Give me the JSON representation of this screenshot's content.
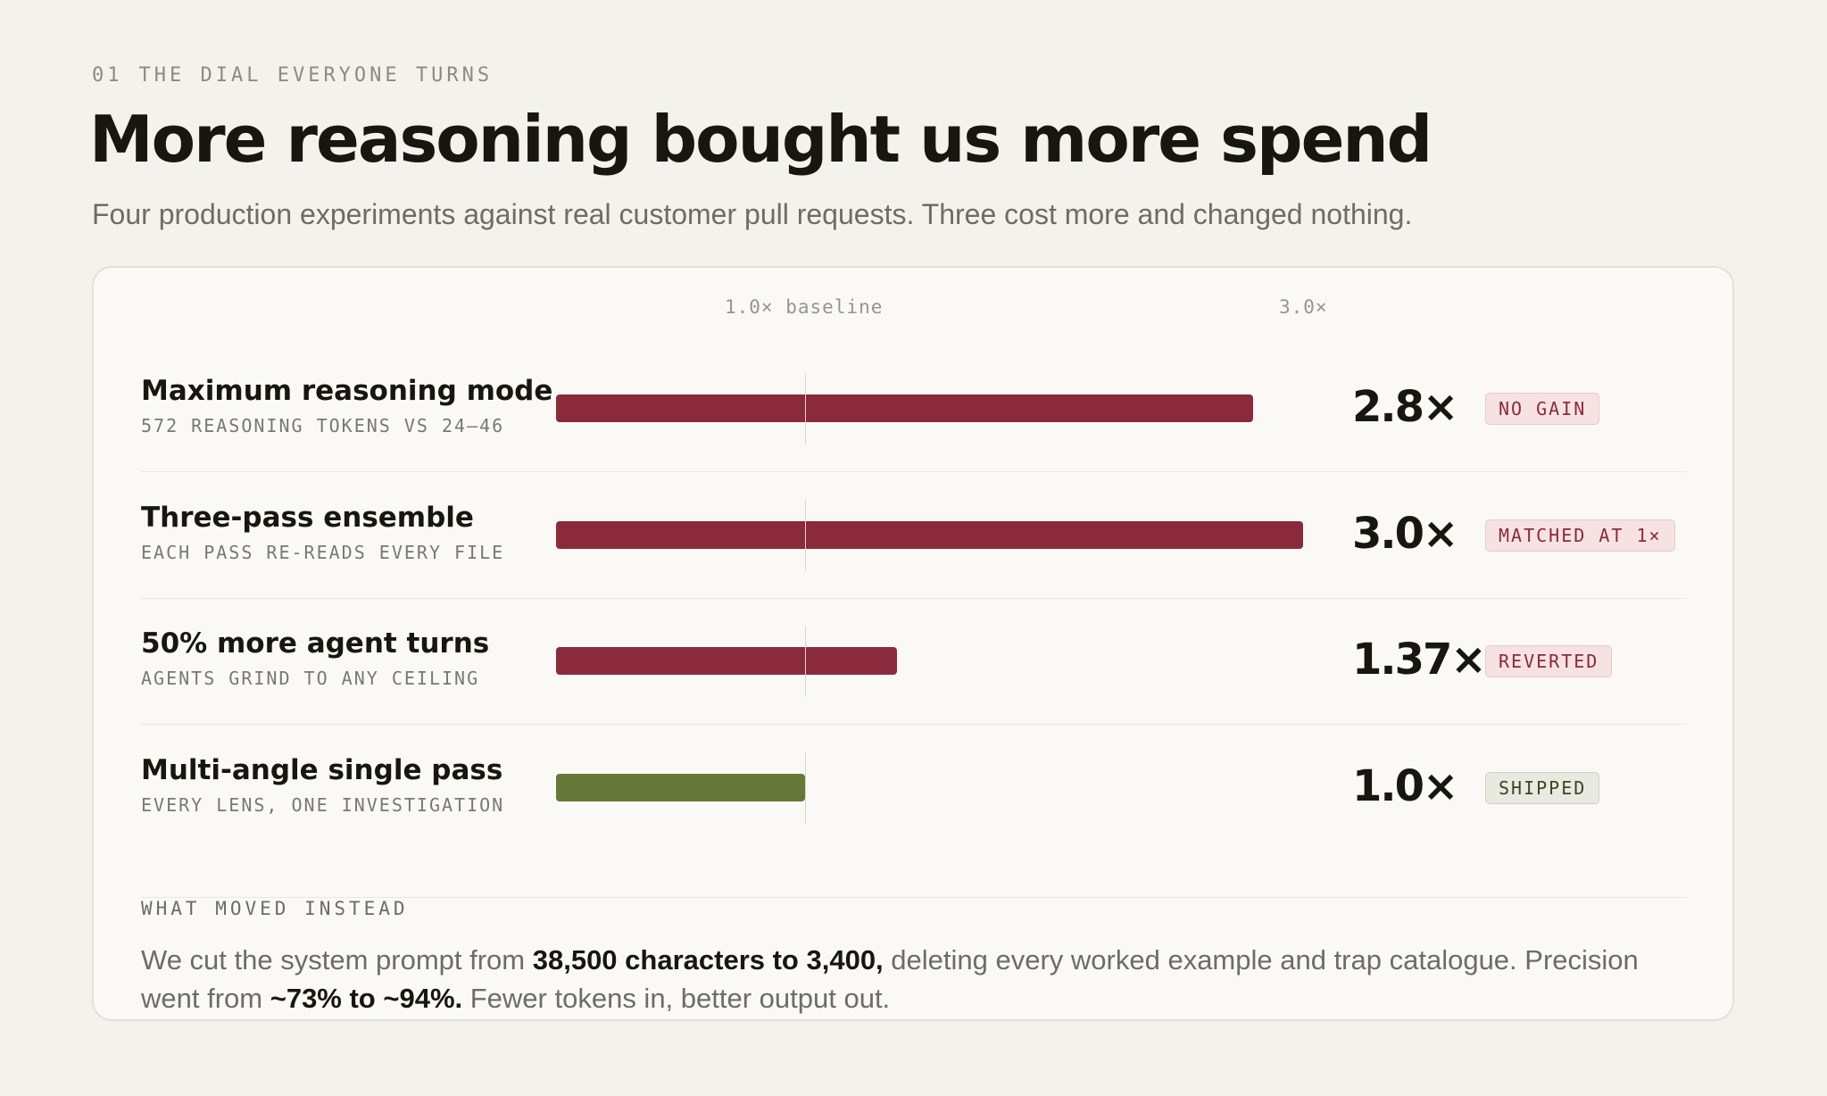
{
  "eyebrow": {
    "number": "01",
    "label": "THE DIAL EVERYONE TURNS"
  },
  "title": "More reasoning bought us more spend",
  "subtitle": "Four production experiments against real customer pull requests. Three cost more and changed nothing.",
  "colors": {
    "cost": "#8a2a3c",
    "shipped": "#657a38",
    "background": "#f4f2ed",
    "card": "#faf9f5"
  },
  "chart_data": {
    "type": "bar",
    "orientation": "horizontal",
    "axis_labels": {
      "baseline": "1.0× baseline",
      "max": "3.0×"
    },
    "xlim": [
      0,
      3.0
    ],
    "reference_line": 1.0,
    "categories": [
      "Maximum reasoning mode",
      "Three-pass ensemble",
      "50% more agent turns",
      "Multi-angle single pass"
    ],
    "subtitles": [
      "572 REASONING TOKENS VS 24–46",
      "EACH PASS RE-READS EVERY FILE",
      "AGENTS GRIND TO ANY CEILING",
      "EVERY LENS, ONE INVESTIGATION"
    ],
    "values": [
      2.8,
      3.0,
      1.37,
      1.0
    ],
    "value_labels": [
      "2.8×",
      "3.0×",
      "1.37×",
      "1.0×"
    ],
    "outcomes": [
      "NO GAIN",
      "MATCHED AT 1×",
      "REVERTED",
      "SHIPPED"
    ],
    "outcome_kind": [
      "negative",
      "negative",
      "negative",
      "positive"
    ]
  },
  "footer": {
    "label": "WHAT MOVED INSTEAD",
    "t1": "We cut the system prompt from ",
    "b1": "38,500 characters to 3,400,",
    "t2": " deleting every worked example and trap catalogue. Precision went from ",
    "b2": "~73% to ~94%.",
    "t3": " Fewer tokens in, better output out."
  }
}
